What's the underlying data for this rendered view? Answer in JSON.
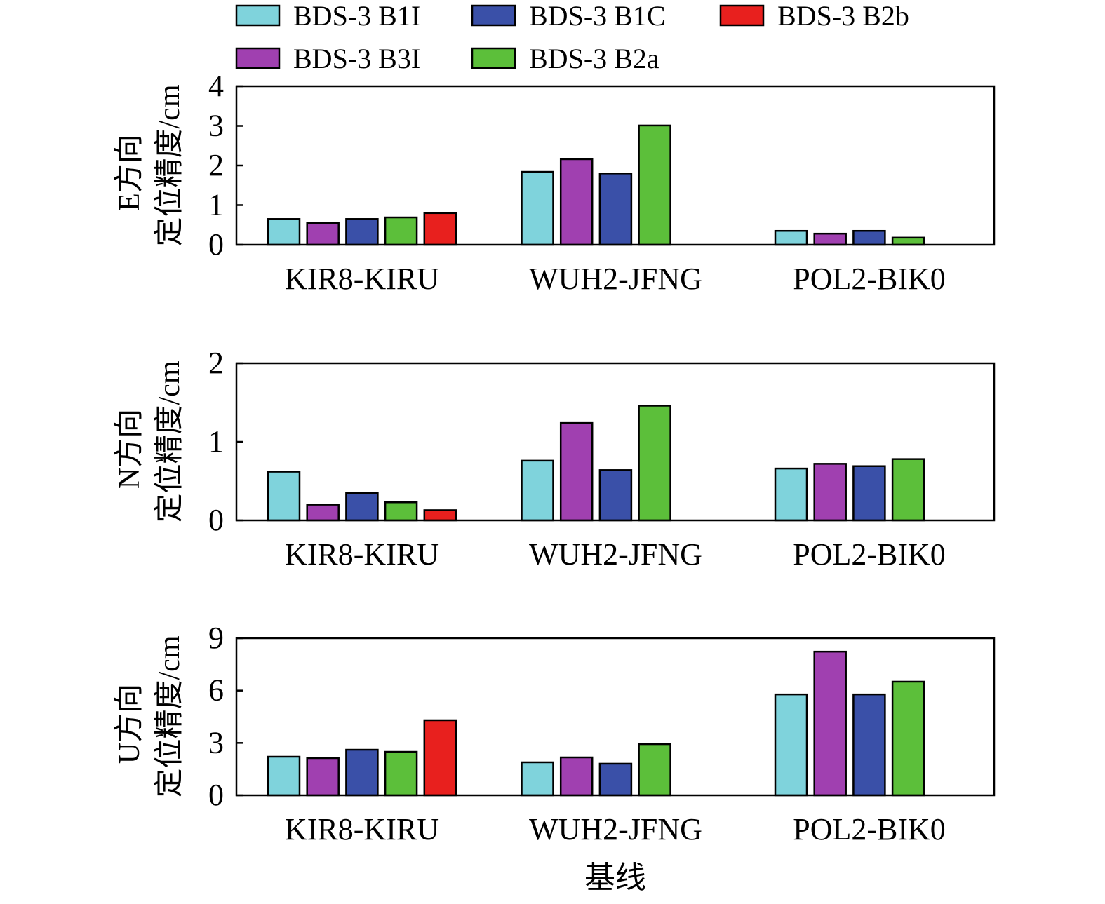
{
  "chart_data": [
    {
      "type": "bar",
      "ylabel_line1": "E方向",
      "ylabel_line2": "定位精度/cm",
      "xlabel": "",
      "ylim": [
        0,
        4
      ],
      "yticks": [
        "0",
        "1",
        "2",
        "3",
        "4"
      ],
      "categories": [
        "KIR8-KIRU",
        "WUH2-JFNG",
        "POL2-BIK0"
      ],
      "series": [
        {
          "name": "BDS-3 B1I",
          "color": "#7fd3dc",
          "values": [
            0.65,
            1.84,
            0.35
          ]
        },
        {
          "name": "BDS-3 B3I",
          "color": "#a040b0",
          "values": [
            0.55,
            2.16,
            0.28
          ]
        },
        {
          "name": "BDS-3 B1C",
          "color": "#3a50a8",
          "values": [
            0.65,
            1.8,
            0.35
          ]
        },
        {
          "name": "BDS-3 B2a",
          "color": "#5cbf3a",
          "values": [
            0.69,
            3.01,
            0.18
          ]
        },
        {
          "name": "BDS-3 B2b",
          "color": "#e8201e",
          "values": [
            0.8,
            null,
            null
          ]
        }
      ]
    },
    {
      "type": "bar",
      "ylabel_line1": "N方向",
      "ylabel_line2": "定位精度/cm",
      "xlabel": "",
      "ylim": [
        0,
        2
      ],
      "yticks": [
        "0",
        "1",
        "2"
      ],
      "categories": [
        "KIR8-KIRU",
        "WUH2-JFNG",
        "POL2-BIK0"
      ],
      "series": [
        {
          "name": "BDS-3 B1I",
          "color": "#7fd3dc",
          "values": [
            0.62,
            0.76,
            0.66
          ]
        },
        {
          "name": "BDS-3 B3I",
          "color": "#a040b0",
          "values": [
            0.2,
            1.24,
            0.72
          ]
        },
        {
          "name": "BDS-3 B1C",
          "color": "#3a50a8",
          "values": [
            0.35,
            0.64,
            0.69
          ]
        },
        {
          "name": "BDS-3 B2a",
          "color": "#5cbf3a",
          "values": [
            0.23,
            1.46,
            0.78
          ]
        },
        {
          "name": "BDS-3 B2b",
          "color": "#e8201e",
          "values": [
            0.13,
            null,
            null
          ]
        }
      ]
    },
    {
      "type": "bar",
      "ylabel_line1": "U方向",
      "ylabel_line2": "定位精度/cm",
      "xlabel": "基线",
      "ylim": [
        0,
        9
      ],
      "yticks": [
        "0",
        "3",
        "6",
        "9"
      ],
      "categories": [
        "KIR8-KIRU",
        "WUH2-JFNG",
        "POL2-BIK0"
      ],
      "series": [
        {
          "name": "BDS-3 B1I",
          "color": "#7fd3dc",
          "values": [
            2.21,
            1.89,
            5.78
          ]
        },
        {
          "name": "BDS-3 B3I",
          "color": "#a040b0",
          "values": [
            2.13,
            2.17,
            8.23
          ]
        },
        {
          "name": "BDS-3 B1C",
          "color": "#3a50a8",
          "values": [
            2.61,
            1.81,
            5.78
          ]
        },
        {
          "name": "BDS-3 B2a",
          "color": "#5cbf3a",
          "values": [
            2.49,
            2.93,
            6.51
          ]
        },
        {
          "name": "BDS-3 B2b",
          "color": "#e8201e",
          "values": [
            4.3,
            null,
            null
          ]
        }
      ]
    }
  ],
  "legend": {
    "placement": "top",
    "items": [
      {
        "label": "BDS-3 B1I",
        "color": "#7fd3dc"
      },
      {
        "label": "BDS-3 B1C",
        "color": "#3a50a8"
      },
      {
        "label": "BDS-3 B2b",
        "color": "#e8201e"
      },
      {
        "label": "BDS-3 B3I",
        "color": "#a040b0"
      },
      {
        "label": "BDS-3 B2a",
        "color": "#5cbf3a"
      }
    ]
  }
}
